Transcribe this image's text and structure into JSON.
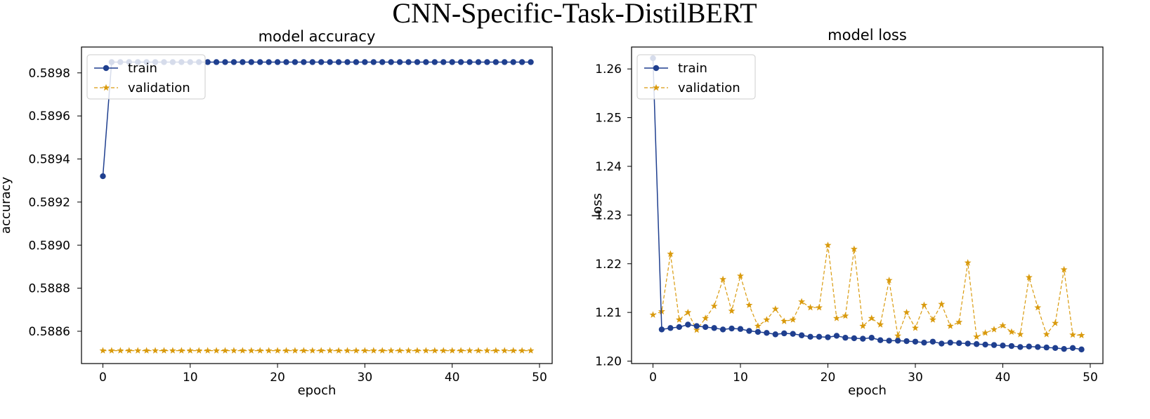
{
  "figure_title": "CNN-Specific-Task-DistilBERT",
  "colors": {
    "train": "#1f3f8f",
    "validation": "#d99a0d"
  },
  "chart_data": [
    {
      "type": "line",
      "title": "model accuracy",
      "xlabel": "epoch",
      "ylabel": "accuracy",
      "xlim": [
        -2.45,
        51.45
      ],
      "ylim": [
        0.58845,
        0.58992
      ],
      "xticks": [
        0,
        10,
        20,
        30,
        40,
        50
      ],
      "xtick_labels": [
        "0",
        "10",
        "20",
        "30",
        "40",
        "50"
      ],
      "yticks": [
        0.5886,
        0.5888,
        0.589,
        0.5892,
        0.5894,
        0.5896,
        0.5898
      ],
      "ytick_labels": [
        "0.5886",
        "0.5888",
        "0.5890",
        "0.5892",
        "0.5894",
        "0.5896",
        "0.5898"
      ],
      "legend": {
        "location": "upper left",
        "entries": [
          "train",
          "validation"
        ]
      },
      "series": [
        {
          "name": "train",
          "values": [
            0.58932,
            0.58985,
            0.58985,
            0.58985,
            0.58985,
            0.58985,
            0.58985,
            0.58985,
            0.58985,
            0.58985,
            0.58985,
            0.58985,
            0.58985,
            0.58985,
            0.58985,
            0.58985,
            0.58985,
            0.58985,
            0.58985,
            0.58985,
            0.58985,
            0.58985,
            0.58985,
            0.58985,
            0.58985,
            0.58985,
            0.58985,
            0.58985,
            0.58985,
            0.58985,
            0.58985,
            0.58985,
            0.58985,
            0.58985,
            0.58985,
            0.58985,
            0.58985,
            0.58985,
            0.58985,
            0.58985,
            0.58985,
            0.58985,
            0.58985,
            0.58985,
            0.58985,
            0.58985,
            0.58985,
            0.58985,
            0.58985,
            0.58985
          ]
        },
        {
          "name": "validation",
          "values": [
            0.58851,
            0.58851,
            0.58851,
            0.58851,
            0.58851,
            0.58851,
            0.58851,
            0.58851,
            0.58851,
            0.58851,
            0.58851,
            0.58851,
            0.58851,
            0.58851,
            0.58851,
            0.58851,
            0.58851,
            0.58851,
            0.58851,
            0.58851,
            0.58851,
            0.58851,
            0.58851,
            0.58851,
            0.58851,
            0.58851,
            0.58851,
            0.58851,
            0.58851,
            0.58851,
            0.58851,
            0.58851,
            0.58851,
            0.58851,
            0.58851,
            0.58851,
            0.58851,
            0.58851,
            0.58851,
            0.58851,
            0.58851,
            0.58851,
            0.58851,
            0.58851,
            0.58851,
            0.58851,
            0.58851,
            0.58851,
            0.58851,
            0.58851
          ]
        }
      ]
    },
    {
      "type": "line",
      "title": "model loss",
      "xlabel": "epoch",
      "ylabel": "loss",
      "xlim": [
        -2.45,
        51.45
      ],
      "ylim": [
        1.1995,
        1.2645
      ],
      "xticks": [
        0,
        10,
        20,
        30,
        40,
        50
      ],
      "xtick_labels": [
        "0",
        "10",
        "20",
        "30",
        "40",
        "50"
      ],
      "yticks": [
        1.2,
        1.21,
        1.22,
        1.23,
        1.24,
        1.25,
        1.26
      ],
      "ytick_labels": [
        "1.20",
        "1.21",
        "1.22",
        "1.23",
        "1.24",
        "1.25",
        "1.26"
      ],
      "legend": {
        "location": "upper left",
        "entries": [
          "train",
          "validation"
        ]
      },
      "series": [
        {
          "name": "train",
          "values": [
            1.2622,
            1.2065,
            1.2068,
            1.207,
            1.2075,
            1.2072,
            1.207,
            1.2068,
            1.2065,
            1.2067,
            1.2066,
            1.2062,
            1.206,
            1.2058,
            1.2055,
            1.2057,
            1.2056,
            1.2053,
            1.205,
            1.205,
            1.2049,
            1.2052,
            1.2048,
            1.2047,
            1.2046,
            1.2048,
            1.2043,
            1.2042,
            1.2042,
            1.2041,
            1.204,
            1.2038,
            1.204,
            1.2036,
            1.2038,
            1.2037,
            1.2036,
            1.2035,
            1.2034,
            1.2033,
            1.2032,
            1.2031,
            1.2029,
            1.203,
            1.2029,
            1.2028,
            1.2027,
            1.2025,
            1.2027,
            1.2024
          ]
        },
        {
          "name": "validation",
          "values": [
            1.2095,
            1.2102,
            1.222,
            1.2085,
            1.21,
            1.2064,
            1.2088,
            1.2113,
            1.2168,
            1.2103,
            1.2175,
            1.2115,
            1.2072,
            1.2085,
            1.2107,
            1.2082,
            1.2085,
            1.2122,
            1.211,
            1.211,
            1.2238,
            1.2088,
            1.2093,
            1.223,
            1.2072,
            1.2088,
            1.2075,
            1.2166,
            1.2052,
            1.21,
            1.2068,
            1.2115,
            1.2085,
            1.2117,
            1.2072,
            1.208,
            1.2202,
            1.205,
            1.2058,
            1.2065,
            1.2073,
            1.206,
            1.2055,
            1.2172,
            1.211,
            1.2055,
            1.2078,
            1.2188,
            1.2054,
            1.2053
          ]
        }
      ]
    }
  ]
}
